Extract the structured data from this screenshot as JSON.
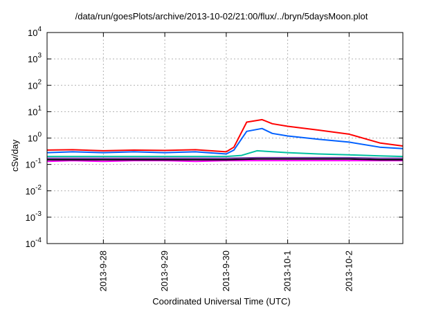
{
  "chart_data": {
    "type": "line",
    "title": "/data/run/goesPlots/archive/2013-10-02/21:00/flux/../bryn/5daysMoon.plot",
    "xlabel": "Coordinated Universal Time (UTC)",
    "ylabel": "cSv/day",
    "yscale": "log",
    "ylim": [
      0.0001,
      10000
    ],
    "yticks": [
      {
        "base": "10",
        "exp": "-4"
      },
      {
        "base": "10",
        "exp": "-3"
      },
      {
        "base": "10",
        "exp": "-2"
      },
      {
        "base": "10",
        "exp": "-1"
      },
      {
        "base": "10",
        "exp": "0"
      },
      {
        "base": "10",
        "exp": "1"
      },
      {
        "base": "10",
        "exp": "2"
      },
      {
        "base": "10",
        "exp": "3"
      },
      {
        "base": "10",
        "exp": "4"
      }
    ],
    "xlim": [
      "2013-09-27T02:00",
      "2013-10-02T21:00"
    ],
    "xticks": [
      "2013-9-28",
      "2013-9-29",
      "2013-9-30",
      "2013-10-1",
      "2013-10-2"
    ],
    "grid": true,
    "series": [
      {
        "color": "#ff00ff",
        "x": [
          "2013-09-27T02:00",
          "2013-09-27T12:00",
          "2013-09-28T00:00",
          "2013-09-28T12:00",
          "2013-09-29T00:00",
          "2013-09-29T12:00",
          "2013-09-30T00:00",
          "2013-09-30T12:00",
          "2013-10-01T00:00",
          "2013-10-01T12:00",
          "2013-10-02T00:00",
          "2013-10-02T12:00",
          "2013-10-02T21:00"
        ],
        "values": [
          0.13,
          0.14,
          0.13,
          0.14,
          0.14,
          0.13,
          0.14,
          0.14,
          0.14,
          0.14,
          0.14,
          0.14,
          0.14
        ]
      },
      {
        "color": "#000000",
        "x": [
          "2013-09-27T02:00",
          "2013-09-27T12:00",
          "2013-09-28T00:00",
          "2013-09-28T12:00",
          "2013-09-29T00:00",
          "2013-09-29T12:00",
          "2013-09-30T00:00",
          "2013-09-30T12:00",
          "2013-10-01T00:00",
          "2013-10-01T12:00",
          "2013-10-02T00:00",
          "2013-10-02T12:00",
          "2013-10-02T21:00"
        ],
        "values": [
          0.15,
          0.15,
          0.15,
          0.15,
          0.15,
          0.15,
          0.15,
          0.16,
          0.16,
          0.16,
          0.16,
          0.15,
          0.15
        ]
      },
      {
        "color": "#7030a0",
        "x": [
          "2013-09-27T02:00",
          "2013-09-27T12:00",
          "2013-09-28T00:00",
          "2013-09-28T12:00",
          "2013-09-29T00:00",
          "2013-09-29T12:00",
          "2013-09-30T00:00",
          "2013-09-30T12:00",
          "2013-10-01T00:00",
          "2013-10-01T12:00",
          "2013-10-02T00:00",
          "2013-10-02T12:00",
          "2013-10-02T21:00"
        ],
        "values": [
          0.17,
          0.17,
          0.17,
          0.17,
          0.17,
          0.17,
          0.17,
          0.18,
          0.18,
          0.18,
          0.18,
          0.17,
          0.17
        ]
      },
      {
        "color": "#00c0a0",
        "x": [
          "2013-09-27T02:00",
          "2013-09-27T12:00",
          "2013-09-28T00:00",
          "2013-09-28T12:00",
          "2013-09-29T00:00",
          "2013-09-29T12:00",
          "2013-09-30T00:00",
          "2013-09-30T06:00",
          "2013-09-30T12:00",
          "2013-10-01T00:00",
          "2013-10-01T12:00",
          "2013-10-02T00:00",
          "2013-10-02T12:00",
          "2013-10-02T21:00"
        ],
        "values": [
          0.2,
          0.2,
          0.2,
          0.2,
          0.2,
          0.2,
          0.2,
          0.22,
          0.33,
          0.28,
          0.25,
          0.23,
          0.21,
          0.2
        ]
      },
      {
        "color": "#0060ff",
        "x": [
          "2013-09-27T02:00",
          "2013-09-27T12:00",
          "2013-09-28T00:00",
          "2013-09-28T12:00",
          "2013-09-29T00:00",
          "2013-09-29T12:00",
          "2013-09-30T00:00",
          "2013-09-30T03:00",
          "2013-09-30T08:00",
          "2013-09-30T14:00",
          "2013-09-30T18:00",
          "2013-10-01T00:00",
          "2013-10-01T12:00",
          "2013-10-02T00:00",
          "2013-10-02T12:00",
          "2013-10-02T21:00"
        ],
        "values": [
          0.28,
          0.3,
          0.28,
          0.3,
          0.28,
          0.3,
          0.25,
          0.35,
          1.8,
          2.3,
          1.5,
          1.2,
          0.9,
          0.7,
          0.45,
          0.4
        ]
      },
      {
        "color": "#ff0000",
        "x": [
          "2013-09-27T02:00",
          "2013-09-27T12:00",
          "2013-09-28T00:00",
          "2013-09-28T12:00",
          "2013-09-29T00:00",
          "2013-09-29T12:00",
          "2013-09-30T00:00",
          "2013-09-30T03:00",
          "2013-09-30T08:00",
          "2013-09-30T14:00",
          "2013-09-30T18:00",
          "2013-10-01T00:00",
          "2013-10-01T12:00",
          "2013-10-02T00:00",
          "2013-10-02T12:00",
          "2013-10-02T21:00"
        ],
        "values": [
          0.35,
          0.36,
          0.33,
          0.35,
          0.34,
          0.36,
          0.3,
          0.45,
          4.0,
          5.0,
          3.5,
          2.8,
          2.0,
          1.4,
          0.65,
          0.5
        ]
      }
    ]
  }
}
